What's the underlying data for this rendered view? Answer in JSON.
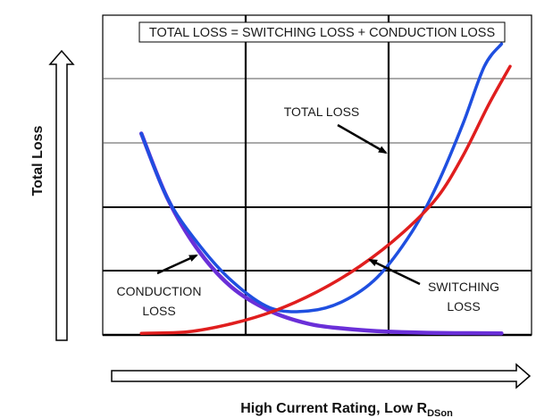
{
  "chart_data": {
    "type": "line",
    "title": "TOTAL LOSS = SWITCHING LOSS + CONDUCTION LOSS",
    "xlabel": "High Current Rating, Low R",
    "xlabel_subscript": "DSon",
    "ylabel": "Total Loss",
    "xlim": [
      0,
      10
    ],
    "ylim": [
      0,
      10
    ],
    "grid": true,
    "series": [
      {
        "name": "TOTAL LOSS",
        "color": "#1f4fe0",
        "x": [
          0.9,
          1.5,
          2.2,
          3.0,
          3.9,
          4.8,
          5.6,
          6.4,
          7.2,
          7.8,
          8.4,
          8.9,
          9.3
        ],
        "y": [
          6.3,
          4.3,
          2.9,
          1.7,
          0.85,
          0.75,
          1.05,
          1.8,
          3.2,
          4.7,
          6.6,
          8.4,
          9.1
        ]
      },
      {
        "name": "CONDUCTION LOSS",
        "color": "#6a2fd8",
        "x": [
          0.9,
          1.5,
          2.2,
          3.0,
          3.9,
          4.8,
          5.6,
          6.4,
          7.2,
          8.0,
          9.3
        ],
        "y": [
          6.3,
          4.3,
          2.7,
          1.5,
          0.75,
          0.35,
          0.2,
          0.12,
          0.08,
          0.06,
          0.05
        ]
      },
      {
        "name": "SWITCHING LOSS",
        "color": "#e01e1e",
        "x": [
          0.9,
          2.0,
          3.0,
          4.0,
          5.0,
          6.0,
          7.0,
          7.8,
          8.4,
          9.0,
          9.5
        ],
        "y": [
          0.05,
          0.1,
          0.35,
          0.75,
          1.35,
          2.15,
          3.2,
          4.3,
          5.6,
          7.2,
          8.4
        ]
      }
    ],
    "annotations": [
      {
        "text": "TOTAL LOSS",
        "points_to": "TOTAL LOSS"
      },
      {
        "text": "CONDUCTION",
        "line2": "LOSS",
        "points_to": "CONDUCTION LOSS"
      },
      {
        "text": "SWITCHING",
        "line2": "LOSS",
        "points_to": "SWITCHING LOSS"
      }
    ]
  }
}
